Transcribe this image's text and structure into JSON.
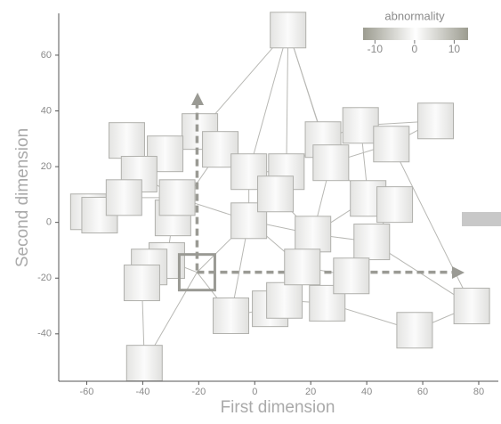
{
  "chart_data": {
    "type": "scatter",
    "xlabel": "First dimension",
    "ylabel": "Second dimension",
    "x": [
      11.9,
      -45.7,
      -19.6,
      -32,
      -41.3,
      -12.3,
      -2.1,
      11.3,
      24.4,
      37.8,
      64.6,
      48.8,
      27.2,
      40.5,
      50,
      41.8,
      20.8,
      -2.1,
      7.4,
      -59.4,
      -55.4,
      -46.7,
      -29.2,
      -27.7,
      -31.4,
      -37.7,
      -40.3,
      -20.6,
      -8.5,
      5.5,
      10.6,
      25.9,
      57.1,
      77.5,
      -39.4,
      17,
      34.5
    ],
    "y": [
      69,
      29.4,
      32.6,
      24.6,
      17.3,
      26.2,
      18.2,
      18.2,
      29.7,
      34.8,
      36.4,
      28.1,
      21.4,
      8.6,
      6.4,
      -7,
      -4.2,
      0.6,
      10.2,
      3.8,
      2.6,
      8.9,
      1.6,
      8.9,
      -13.7,
      -16,
      -21.7,
      -17.9,
      -33.5,
      -31,
      -28,
      -29,
      -38.7,
      -30,
      -50.5,
      -16,
      -19.2
    ],
    "edges": [
      [
        0,
        2
      ],
      [
        0,
        6
      ],
      [
        0,
        7
      ],
      [
        0,
        12
      ],
      [
        0,
        8
      ],
      [
        1,
        4
      ],
      [
        2,
        5
      ],
      [
        3,
        4
      ],
      [
        5,
        6
      ],
      [
        6,
        7
      ],
      [
        7,
        8
      ],
      [
        8,
        9
      ],
      [
        9,
        10
      ],
      [
        10,
        11
      ],
      [
        11,
        12
      ],
      [
        12,
        13
      ],
      [
        13,
        14
      ],
      [
        14,
        15
      ],
      [
        15,
        16
      ],
      [
        16,
        17
      ],
      [
        17,
        18
      ],
      [
        18,
        7
      ],
      [
        6,
        17
      ],
      [
        19,
        21
      ],
      [
        20,
        21
      ],
      [
        21,
        23
      ],
      [
        22,
        23
      ],
      [
        22,
        24
      ],
      [
        24,
        25
      ],
      [
        25,
        26
      ],
      [
        24,
        27
      ],
      [
        27,
        28
      ],
      [
        28,
        29
      ],
      [
        29,
        30
      ],
      [
        30,
        31
      ],
      [
        31,
        32
      ],
      [
        32,
        33
      ],
      [
        15,
        33
      ],
      [
        11,
        33
      ],
      [
        27,
        34
      ],
      [
        27,
        17
      ],
      [
        16,
        35
      ],
      [
        35,
        36
      ],
      [
        36,
        15
      ],
      [
        30,
        35
      ],
      [
        26,
        34
      ],
      [
        13,
        16
      ],
      [
        18,
        16
      ],
      [
        5,
        22
      ],
      [
        4,
        23
      ],
      [
        2,
        6
      ],
      [
        31,
        36
      ],
      [
        9,
        13
      ],
      [
        12,
        16
      ],
      [
        17,
        35
      ],
      [
        23,
        17
      ],
      [
        28,
        17
      ]
    ],
    "highlight": 27,
    "xlim": [
      -70,
      87
    ],
    "ylim": [
      -57,
      75
    ],
    "xticks": [
      -60,
      -40,
      -20,
      0,
      20,
      40,
      60,
      80
    ],
    "yticks": [
      -40,
      -20,
      0,
      20,
      40,
      60
    ],
    "colorbar": {
      "label": "abnormality",
      "lim": [
        -13,
        13.5
      ],
      "ticks": [
        -10,
        0,
        10
      ]
    }
  }
}
